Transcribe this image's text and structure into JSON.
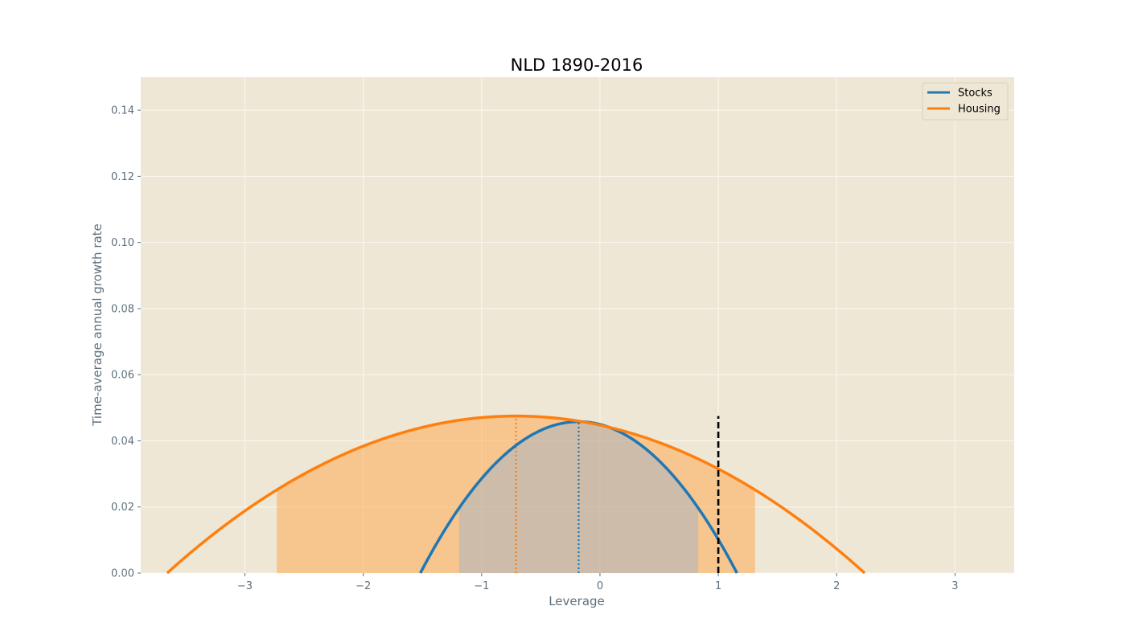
{
  "chart_data": {
    "type": "line",
    "title": "NLD 1890-2016",
    "xlabel": "Leverage",
    "ylabel": "Time-average annual growth rate",
    "xlim": [
      -3.88,
      3.5
    ],
    "ylim": [
      0.0,
      0.15
    ],
    "xticks": [
      -3,
      -2,
      -1,
      0,
      1,
      2,
      3
    ],
    "xtick_labels": [
      "−3",
      "−2",
      "−1",
      "0",
      "1",
      "2",
      "3"
    ],
    "yticks": [
      0.0,
      0.02,
      0.04,
      0.06,
      0.08,
      0.1,
      0.12,
      0.14
    ],
    "ytick_labels": [
      "0.00",
      "0.02",
      "0.04",
      "0.06",
      "0.08",
      "0.10",
      "0.12",
      "0.14"
    ],
    "grid": true,
    "legend_position": "top-right",
    "series": [
      {
        "name": "Stocks",
        "color": "#1f77b4",
        "optimal_leverage": -0.18,
        "max_growth": 0.0458,
        "curvature": 0.0256,
        "shaded_range": [
          -1.19,
          0.83
        ],
        "shade_color": "#a5b4c6"
      },
      {
        "name": "Housing",
        "color": "#ff7f0e",
        "optimal_leverage": -0.71,
        "max_growth": 0.0475,
        "curvature": 0.00547,
        "shaded_range": [
          -2.73,
          1.31
        ],
        "shade_color": "#ffa447"
      }
    ],
    "reference_line": {
      "x": 1.0,
      "y_top": 0.0475,
      "color": "#000000",
      "style": "dashed"
    }
  },
  "colors": {
    "plot_background": "#eee7d5",
    "grid": "#fbf8f0",
    "tick_text": "#5e707e"
  }
}
